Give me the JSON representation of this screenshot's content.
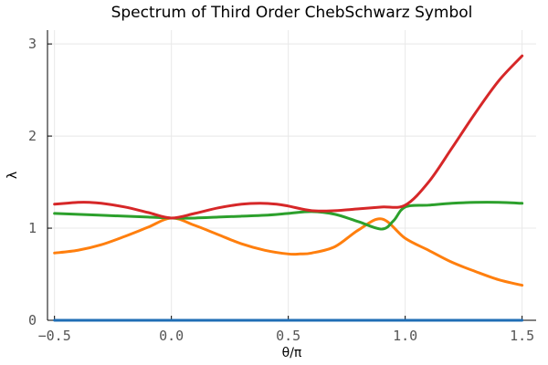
{
  "chart_data": {
    "type": "line",
    "title": "Spectrum of Third Order ChebSchwarz Symbol",
    "xlabel": "θ/π",
    "ylabel": "λ",
    "xlim": [
      -0.53,
      1.56
    ],
    "ylim": [
      0,
      3.15
    ],
    "x_ticks": [
      -0.5,
      0.0,
      0.5,
      1.0,
      1.5
    ],
    "x_tick_labels": [
      "−0.5",
      "0.0",
      "0.5",
      "1.0",
      "1.5"
    ],
    "y_ticks": [
      0,
      1,
      2,
      3
    ],
    "y_tick_labels": [
      "0",
      "1",
      "2",
      "3"
    ],
    "grid": true,
    "legend": "none",
    "series": [
      {
        "color": "#1f6db5",
        "x": [
          -0.5,
          1.5
        ],
        "y": [
          0.0,
          0.0
        ]
      },
      {
        "color": "#ff7f0e",
        "x": [
          -0.5,
          -0.4,
          -0.3,
          -0.2,
          -0.1,
          0.0,
          0.1,
          0.2,
          0.3,
          0.4,
          0.5,
          0.55,
          0.6,
          0.7,
          0.8,
          0.9,
          1.0,
          1.1,
          1.2,
          1.3,
          1.4,
          1.5
        ],
        "y": [
          0.73,
          0.76,
          0.82,
          0.91,
          1.01,
          1.11,
          1.03,
          0.93,
          0.83,
          0.76,
          0.72,
          0.72,
          0.73,
          0.8,
          0.98,
          1.1,
          0.89,
          0.76,
          0.63,
          0.53,
          0.44,
          0.38
        ]
      },
      {
        "color": "#2ca02c",
        "x": [
          -0.5,
          -0.4,
          -0.3,
          -0.2,
          -0.1,
          0.0,
          0.1,
          0.2,
          0.3,
          0.4,
          0.5,
          0.6,
          0.7,
          0.8,
          0.9,
          0.95,
          1.0,
          1.1,
          1.2,
          1.3,
          1.4,
          1.5
        ],
        "y": [
          1.16,
          1.15,
          1.14,
          1.13,
          1.12,
          1.11,
          1.11,
          1.12,
          1.13,
          1.14,
          1.16,
          1.18,
          1.15,
          1.07,
          0.99,
          1.08,
          1.23,
          1.25,
          1.27,
          1.28,
          1.28,
          1.27
        ]
      },
      {
        "color": "#d62728",
        "x": [
          -0.5,
          -0.45,
          -0.4,
          -0.35,
          -0.3,
          -0.2,
          -0.1,
          0.0,
          0.1,
          0.2,
          0.3,
          0.38,
          0.45,
          0.5,
          0.6,
          0.7,
          0.8,
          0.9,
          1.0,
          1.1,
          1.2,
          1.3,
          1.4,
          1.5
        ],
        "y": [
          1.26,
          1.27,
          1.28,
          1.28,
          1.27,
          1.23,
          1.17,
          1.11,
          1.16,
          1.22,
          1.26,
          1.27,
          1.26,
          1.24,
          1.19,
          1.19,
          1.21,
          1.23,
          1.25,
          1.5,
          1.87,
          2.25,
          2.6,
          2.87
        ]
      }
    ]
  }
}
